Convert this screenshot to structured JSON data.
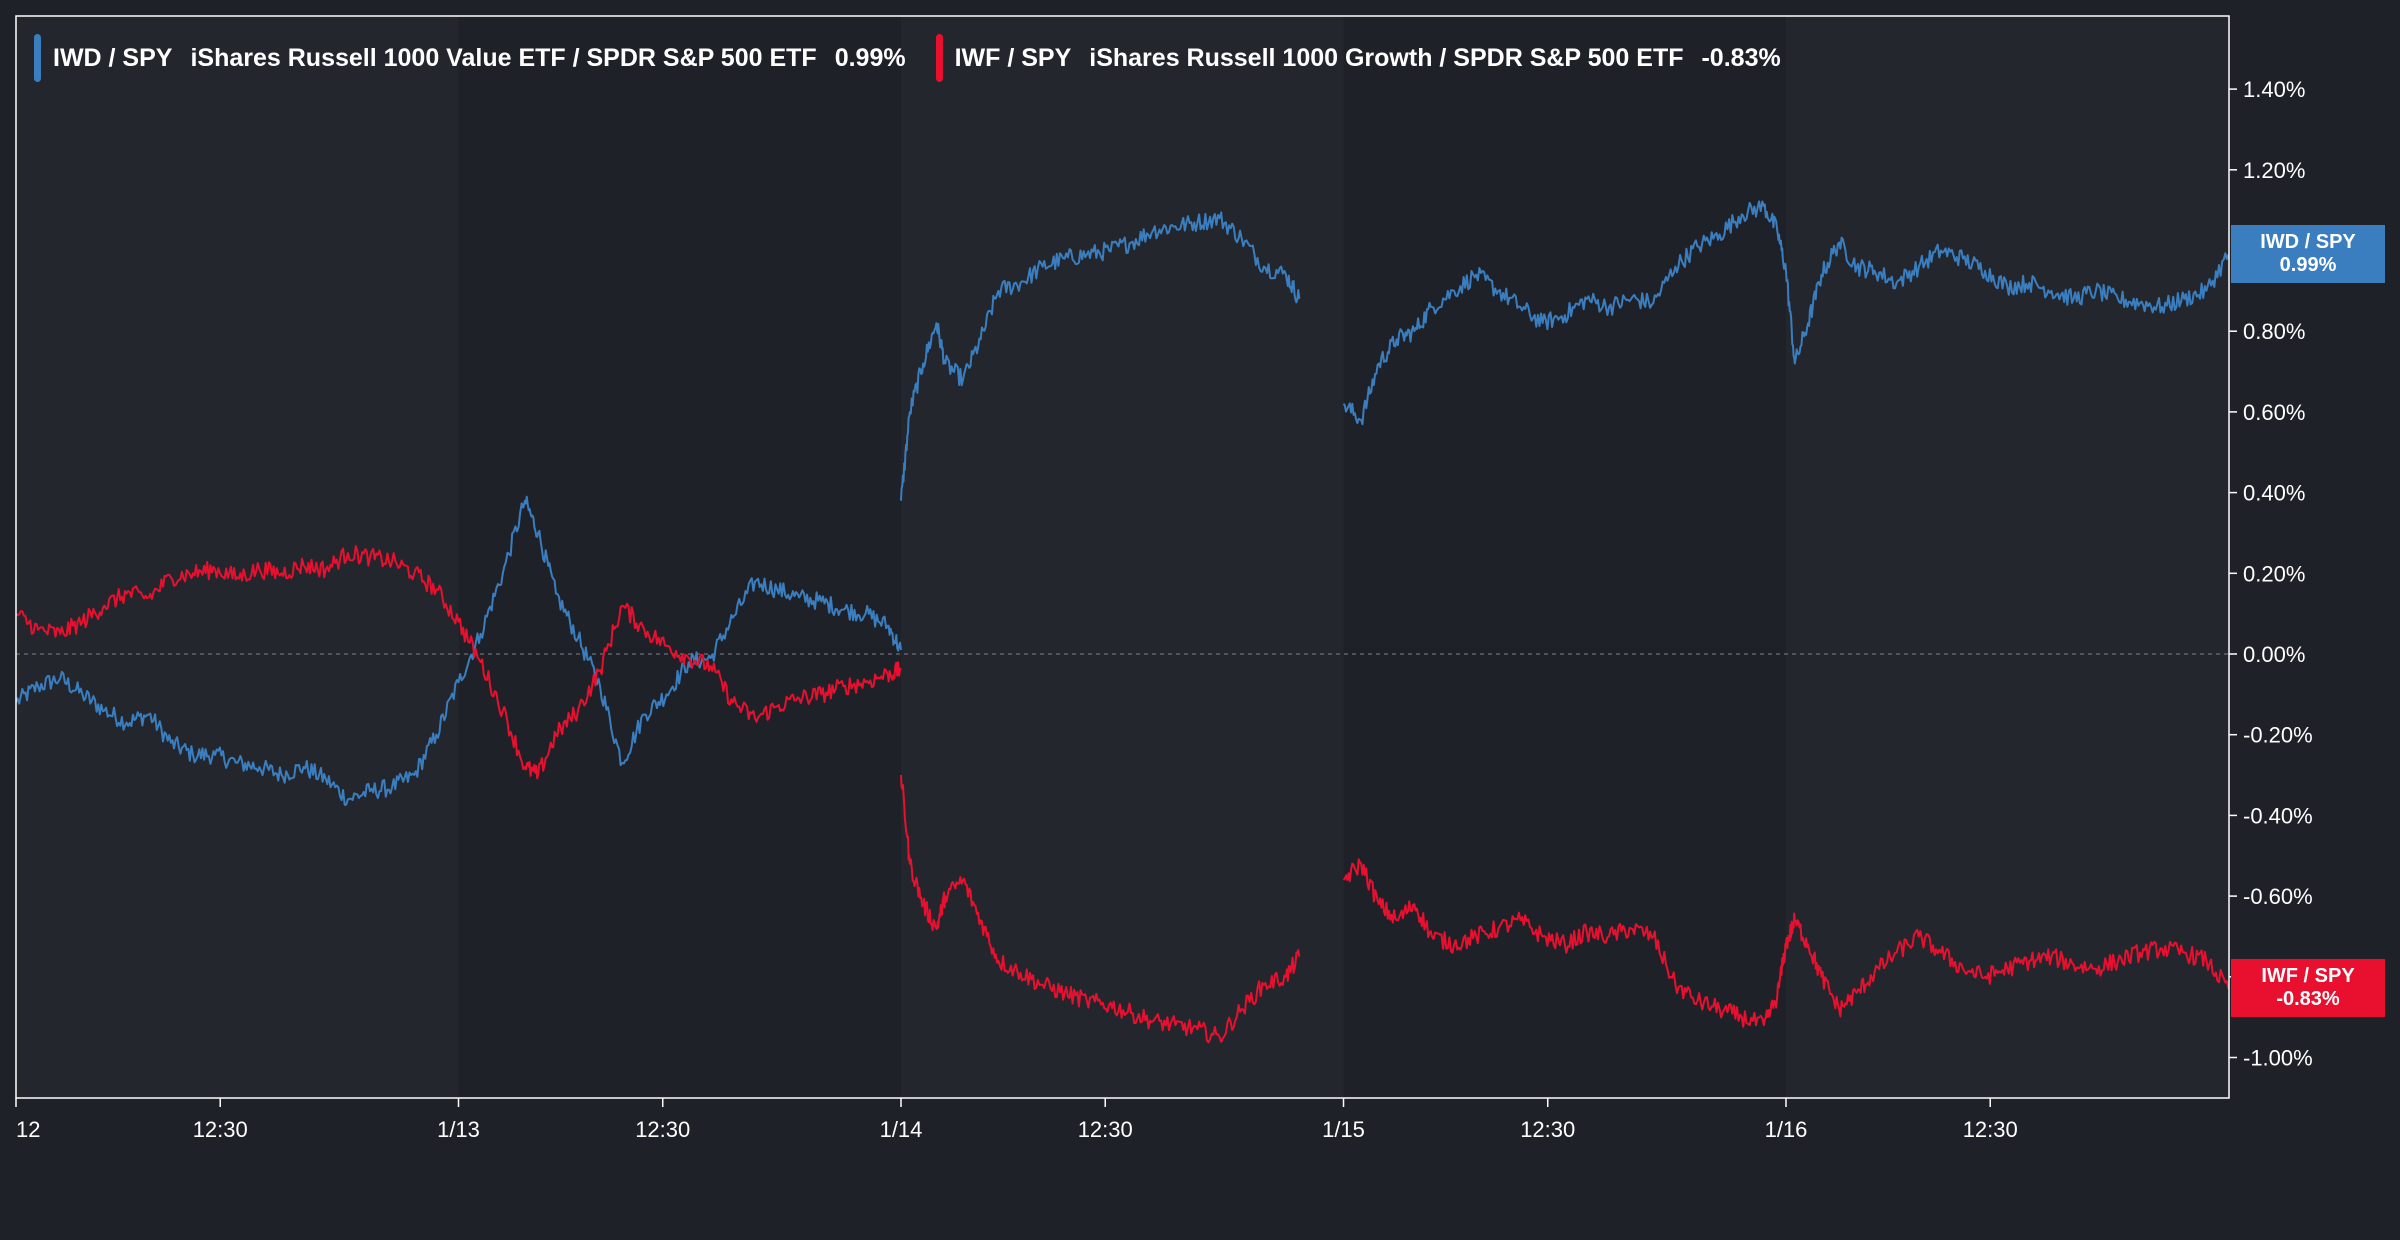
{
  "chart_data": {
    "type": "line",
    "title": "",
    "xlabel": "",
    "ylabel": "",
    "x_range": [
      "1/12 09:30",
      "1/16 16:00"
    ],
    "ylim": [
      -1.1,
      1.55
    ],
    "y_ticks": [
      -1.0,
      -0.8,
      -0.6,
      -0.4,
      -0.2,
      0.0,
      0.2,
      0.4,
      0.6,
      0.8,
      1.0,
      1.2,
      1.4
    ],
    "y_tick_labels": [
      "-1.00%",
      "-0.80%",
      "-0.60%",
      "-0.40%",
      "-0.20%",
      "0.00%",
      "0.20%",
      "0.40%",
      "0.60%",
      "0.80%",
      "1.20%",
      "1.40%"
    ],
    "y_tick_values": [
      -1.0,
      -0.8,
      -0.6,
      -0.4,
      -0.2,
      0.0,
      0.2,
      0.4,
      0.6,
      0.8,
      1.2,
      1.4
    ],
    "x_ticks": [
      {
        "day": 0,
        "time": "09:30",
        "label": "12"
      },
      {
        "day": 0,
        "time": "12:30",
        "label": "12:30"
      },
      {
        "day": 1,
        "time": "09:30",
        "label": "1/13"
      },
      {
        "day": 1,
        "time": "12:30",
        "label": "12:30"
      },
      {
        "day": 2,
        "time": "09:30",
        "label": "1/14"
      },
      {
        "day": 2,
        "time": "12:30",
        "label": "12:30"
      },
      {
        "day": 3,
        "time": "09:30",
        "label": "1/15"
      },
      {
        "day": 3,
        "time": "12:30",
        "label": "12:30"
      },
      {
        "day": 4,
        "time": "09:30",
        "label": "1/16"
      },
      {
        "day": 4,
        "time": "12:30",
        "label": "12:30"
      }
    ],
    "days": [
      "1/12",
      "1/13",
      "1/14",
      "1/15",
      "1/16"
    ],
    "zero_line": true,
    "legend_position": "top-left",
    "series": [
      {
        "name": "IWD / SPY",
        "description": "iShares Russell 1000 Value ETF / SPDR S&P 500 ETF",
        "last_value": "0.99%",
        "color": "#3a7ebf",
        "points": [
          [
            0.0,
            -0.12
          ],
          [
            0.05,
            -0.08
          ],
          [
            0.1,
            -0.06
          ],
          [
            0.15,
            -0.1
          ],
          [
            0.2,
            -0.14
          ],
          [
            0.25,
            -0.17
          ],
          [
            0.3,
            -0.15
          ],
          [
            0.35,
            -0.22
          ],
          [
            0.4,
            -0.25
          ],
          [
            0.45,
            -0.25
          ],
          [
            0.5,
            -0.27
          ],
          [
            0.55,
            -0.28
          ],
          [
            0.6,
            -0.3
          ],
          [
            0.65,
            -0.28
          ],
          [
            0.7,
            -0.31
          ],
          [
            0.75,
            -0.36
          ],
          [
            0.8,
            -0.34
          ],
          [
            0.85,
            -0.33
          ],
          [
            0.9,
            -0.3
          ],
          [
            0.95,
            -0.2
          ],
          [
            1.0,
            -0.07
          ],
          [
            1.05,
            0.05
          ],
          [
            1.1,
            0.2
          ],
          [
            1.15,
            0.38
          ],
          [
            1.18,
            0.3
          ],
          [
            1.22,
            0.15
          ],
          [
            1.27,
            0.04
          ],
          [
            1.32,
            -0.08
          ],
          [
            1.37,
            -0.27
          ],
          [
            1.42,
            -0.15
          ],
          [
            1.47,
            -0.1
          ],
          [
            1.52,
            -0.02
          ],
          [
            1.57,
            -0.01
          ],
          [
            1.62,
            0.09
          ],
          [
            1.67,
            0.18
          ],
          [
            1.72,
            0.16
          ],
          [
            1.77,
            0.14
          ],
          [
            1.82,
            0.13
          ],
          [
            1.87,
            0.11
          ],
          [
            1.92,
            0.1
          ],
          [
            1.97,
            0.07
          ],
          [
            2.0,
            0.01
          ],
          [
            2.0,
            0.38
          ],
          [
            2.02,
            0.6
          ],
          [
            2.05,
            0.72
          ],
          [
            2.08,
            0.82
          ],
          [
            2.1,
            0.72
          ],
          [
            2.14,
            0.68
          ],
          [
            2.18,
            0.78
          ],
          [
            2.22,
            0.9
          ],
          [
            2.27,
            0.92
          ],
          [
            2.32,
            0.96
          ],
          [
            2.37,
            0.98
          ],
          [
            2.42,
            0.99
          ],
          [
            2.47,
            1.0
          ],
          [
            2.52,
            1.02
          ],
          [
            2.57,
            1.05
          ],
          [
            2.62,
            1.06
          ],
          [
            2.67,
            1.07
          ],
          [
            2.72,
            1.08
          ],
          [
            2.77,
            1.03
          ],
          [
            2.82,
            0.96
          ],
          [
            2.87,
            0.94
          ],
          [
            2.9,
            0.88
          ],
          [
            3.0,
            0.62
          ],
          [
            3.04,
            0.58
          ],
          [
            3.08,
            0.72
          ],
          [
            3.12,
            0.78
          ],
          [
            3.16,
            0.8
          ],
          [
            3.2,
            0.86
          ],
          [
            3.25,
            0.9
          ],
          [
            3.3,
            0.94
          ],
          [
            3.35,
            0.9
          ],
          [
            3.4,
            0.86
          ],
          [
            3.45,
            0.82
          ],
          [
            3.5,
            0.84
          ],
          [
            3.55,
            0.88
          ],
          [
            3.6,
            0.86
          ],
          [
            3.65,
            0.88
          ],
          [
            3.7,
            0.87
          ],
          [
            3.75,
            0.96
          ],
          [
            3.8,
            1.01
          ],
          [
            3.85,
            1.04
          ],
          [
            3.9,
            1.09
          ],
          [
            3.95,
            1.11
          ],
          [
            3.98,
            1.05
          ],
          [
            4.0,
            0.95
          ],
          [
            4.02,
            0.72
          ],
          [
            4.05,
            0.82
          ],
          [
            4.08,
            0.94
          ],
          [
            4.12,
            1.02
          ],
          [
            4.16,
            0.96
          ],
          [
            4.2,
            0.95
          ],
          [
            4.25,
            0.92
          ],
          [
            4.3,
            0.96
          ],
          [
            4.35,
            1.0
          ],
          [
            4.4,
            0.98
          ],
          [
            4.45,
            0.95
          ],
          [
            4.5,
            0.91
          ],
          [
            4.55,
            0.92
          ],
          [
            4.6,
            0.9
          ],
          [
            4.65,
            0.88
          ],
          [
            4.7,
            0.9
          ],
          [
            4.75,
            0.88
          ],
          [
            4.8,
            0.87
          ],
          [
            4.85,
            0.86
          ],
          [
            4.9,
            0.88
          ],
          [
            4.95,
            0.9
          ],
          [
            5.0,
            0.99
          ]
        ]
      },
      {
        "name": "IWF / SPY",
        "description": "iShares Russell 1000 Growth / SPDR S&P 500 ETF",
        "last_value": "-0.83%",
        "color": "#e8102e",
        "points": [
          [
            0.0,
            0.1
          ],
          [
            0.05,
            0.06
          ],
          [
            0.1,
            0.05
          ],
          [
            0.15,
            0.08
          ],
          [
            0.2,
            0.12
          ],
          [
            0.25,
            0.15
          ],
          [
            0.3,
            0.14
          ],
          [
            0.35,
            0.19
          ],
          [
            0.4,
            0.2
          ],
          [
            0.45,
            0.21
          ],
          [
            0.5,
            0.19
          ],
          [
            0.55,
            0.21
          ],
          [
            0.6,
            0.2
          ],
          [
            0.65,
            0.22
          ],
          [
            0.7,
            0.21
          ],
          [
            0.75,
            0.25
          ],
          [
            0.8,
            0.24
          ],
          [
            0.85,
            0.23
          ],
          [
            0.9,
            0.2
          ],
          [
            0.95,
            0.16
          ],
          [
            1.0,
            0.08
          ],
          [
            1.05,
            -0.02
          ],
          [
            1.1,
            -0.14
          ],
          [
            1.15,
            -0.28
          ],
          [
            1.18,
            -0.3
          ],
          [
            1.22,
            -0.2
          ],
          [
            1.27,
            -0.14
          ],
          [
            1.32,
            -0.04
          ],
          [
            1.37,
            0.12
          ],
          [
            1.42,
            0.06
          ],
          [
            1.47,
            0.02
          ],
          [
            1.52,
            -0.01
          ],
          [
            1.57,
            -0.03
          ],
          [
            1.62,
            -0.12
          ],
          [
            1.67,
            -0.16
          ],
          [
            1.72,
            -0.13
          ],
          [
            1.77,
            -0.11
          ],
          [
            1.82,
            -0.1
          ],
          [
            1.87,
            -0.08
          ],
          [
            1.92,
            -0.07
          ],
          [
            1.97,
            -0.05
          ],
          [
            2.0,
            -0.04
          ],
          [
            2.0,
            -0.3
          ],
          [
            2.02,
            -0.52
          ],
          [
            2.05,
            -0.62
          ],
          [
            2.08,
            -0.68
          ],
          [
            2.1,
            -0.6
          ],
          [
            2.14,
            -0.56
          ],
          [
            2.18,
            -0.66
          ],
          [
            2.22,
            -0.76
          ],
          [
            2.27,
            -0.79
          ],
          [
            2.32,
            -0.82
          ],
          [
            2.37,
            -0.84
          ],
          [
            2.42,
            -0.86
          ],
          [
            2.47,
            -0.87
          ],
          [
            2.52,
            -0.89
          ],
          [
            2.57,
            -0.91
          ],
          [
            2.62,
            -0.92
          ],
          [
            2.67,
            -0.93
          ],
          [
            2.72,
            -0.95
          ],
          [
            2.77,
            -0.88
          ],
          [
            2.82,
            -0.82
          ],
          [
            2.87,
            -0.8
          ],
          [
            2.9,
            -0.75
          ],
          [
            3.0,
            -0.56
          ],
          [
            3.04,
            -0.52
          ],
          [
            3.08,
            -0.62
          ],
          [
            3.12,
            -0.66
          ],
          [
            3.16,
            -0.62
          ],
          [
            3.2,
            -0.7
          ],
          [
            3.25,
            -0.72
          ],
          [
            3.3,
            -0.7
          ],
          [
            3.35,
            -0.68
          ],
          [
            3.4,
            -0.66
          ],
          [
            3.45,
            -0.7
          ],
          [
            3.5,
            -0.72
          ],
          [
            3.55,
            -0.69
          ],
          [
            3.6,
            -0.7
          ],
          [
            3.65,
            -0.68
          ],
          [
            3.7,
            -0.7
          ],
          [
            3.75,
            -0.82
          ],
          [
            3.8,
            -0.86
          ],
          [
            3.85,
            -0.88
          ],
          [
            3.9,
            -0.9
          ],
          [
            3.95,
            -0.92
          ],
          [
            3.98,
            -0.85
          ],
          [
            4.0,
            -0.72
          ],
          [
            4.02,
            -0.66
          ],
          [
            4.05,
            -0.72
          ],
          [
            4.08,
            -0.8
          ],
          [
            4.12,
            -0.88
          ],
          [
            4.16,
            -0.84
          ],
          [
            4.2,
            -0.79
          ],
          [
            4.25,
            -0.74
          ],
          [
            4.3,
            -0.7
          ],
          [
            4.35,
            -0.74
          ],
          [
            4.4,
            -0.78
          ],
          [
            4.45,
            -0.8
          ],
          [
            4.5,
            -0.78
          ],
          [
            4.55,
            -0.76
          ],
          [
            4.6,
            -0.75
          ],
          [
            4.65,
            -0.77
          ],
          [
            4.7,
            -0.78
          ],
          [
            4.75,
            -0.76
          ],
          [
            4.8,
            -0.74
          ],
          [
            4.85,
            -0.73
          ],
          [
            4.9,
            -0.74
          ],
          [
            4.95,
            -0.76
          ],
          [
            5.0,
            -0.83
          ]
        ]
      }
    ]
  }
}
